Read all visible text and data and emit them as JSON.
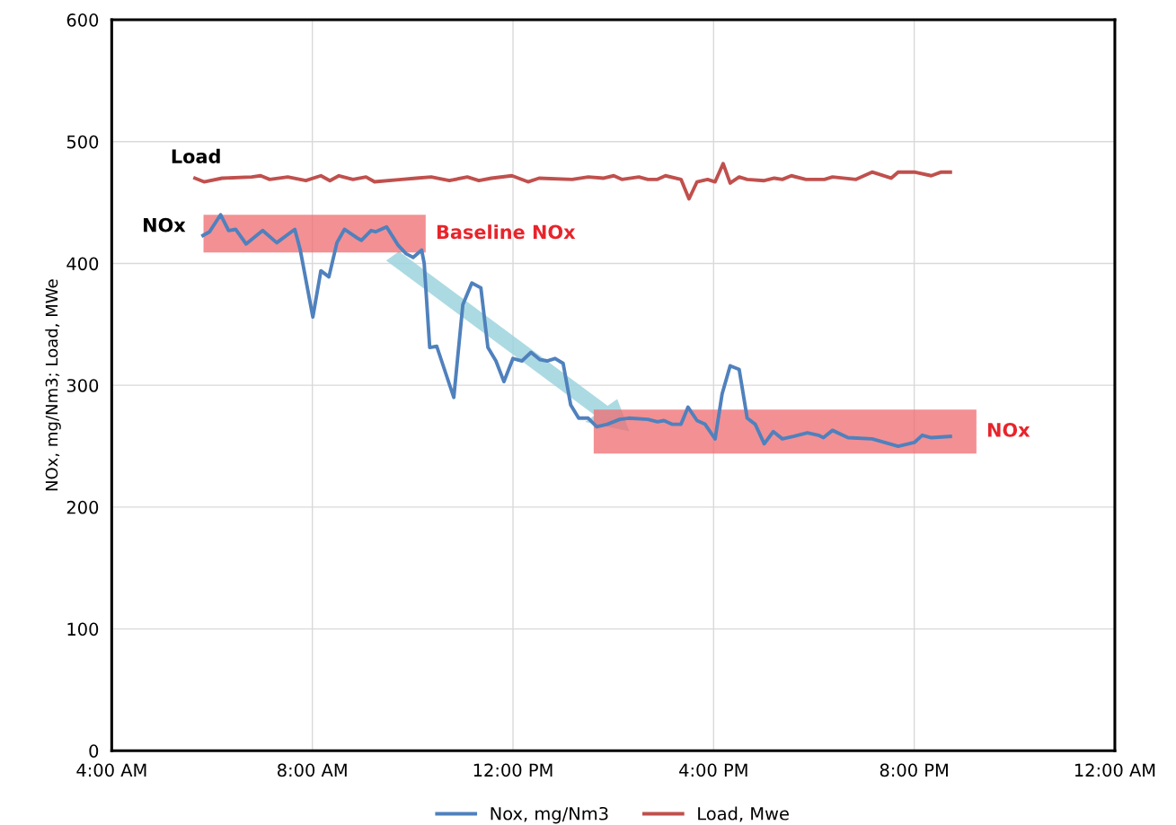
{
  "chart_data": {
    "type": "line",
    "ylabel": "NOx, mg/Nm3; Load, MWe",
    "xlim": [
      4,
      24
    ],
    "xticks": [
      {
        "value": 4,
        "label": "4:00 AM"
      },
      {
        "value": 8,
        "label": "8:00 AM"
      },
      {
        "value": 12,
        "label": "12:00 PM"
      },
      {
        "value": 16,
        "label": "4:00 PM"
      },
      {
        "value": 20,
        "label": "8:00 PM"
      },
      {
        "value": 24,
        "label": "12:00 AM"
      }
    ],
    "ylim": [
      0,
      600
    ],
    "yticks": [
      0,
      100,
      200,
      300,
      400,
      500,
      600
    ],
    "grid": true,
    "legend": "bottom",
    "marker": "none",
    "line_style": "solid",
    "series": [
      {
        "name": "Nox, mg/Nm3",
        "color": "#4f81bd",
        "x": [
          5.82,
          5.95,
          6.17,
          6.33,
          6.47,
          6.68,
          7.01,
          7.29,
          7.65,
          7.76,
          8.01,
          8.17,
          8.33,
          8.49,
          8.64,
          8.89,
          8.98,
          9.17,
          9.26,
          9.48,
          9.71,
          9.87,
          10.01,
          10.18,
          10.23,
          10.34,
          10.48,
          10.82,
          11.0,
          11.18,
          11.36,
          11.5,
          11.66,
          11.82,
          12.0,
          12.18,
          12.36,
          12.54,
          12.68,
          12.84,
          13.0,
          13.15,
          13.31,
          13.5,
          13.67,
          13.88,
          14.13,
          14.31,
          14.69,
          14.88,
          15.01,
          15.17,
          15.35,
          15.49,
          15.67,
          15.83,
          16.03,
          16.17,
          16.33,
          16.51,
          16.67,
          16.83,
          17.01,
          17.19,
          17.37,
          17.59,
          17.87,
          18.09,
          18.19,
          18.37,
          18.68,
          19.16,
          19.68,
          20.0,
          20.16,
          20.34,
          20.72
        ],
        "values": [
          423,
          426,
          440,
          427,
          428,
          416,
          427,
          417,
          428,
          411,
          356,
          394,
          389,
          417,
          428,
          421,
          419,
          427,
          426,
          430,
          415,
          408,
          405,
          411,
          400,
          331,
          332,
          290,
          366,
          384,
          380,
          331,
          320,
          303,
          322,
          320,
          327,
          321,
          320,
          322,
          318,
          284,
          273,
          273,
          266,
          268,
          272,
          273,
          272,
          270,
          271,
          268,
          268,
          282,
          271,
          268,
          256,
          293,
          316,
          313,
          273,
          268,
          252,
          262,
          256,
          258,
          261,
          259,
          257,
          263,
          257,
          256,
          250,
          253,
          259,
          257,
          258
        ]
      },
      {
        "name": "Load, Mwe",
        "color": "#c0504d",
        "x": [
          5.66,
          5.84,
          6.2,
          6.79,
          6.97,
          7.15,
          7.51,
          7.87,
          8.17,
          8.35,
          8.53,
          8.81,
          9.07,
          9.24,
          9.78,
          10.07,
          10.37,
          10.73,
          11.09,
          11.32,
          11.57,
          11.98,
          12.3,
          12.52,
          13.18,
          13.5,
          13.81,
          14.01,
          14.17,
          14.51,
          14.69,
          14.88,
          15.04,
          15.35,
          15.51,
          15.67,
          15.88,
          16.03,
          16.19,
          16.33,
          16.51,
          16.67,
          17.01,
          17.21,
          17.37,
          17.55,
          17.84,
          18.21,
          18.37,
          18.84,
          19.16,
          19.54,
          19.68,
          20.0,
          20.34,
          20.54,
          20.72
        ],
        "values": [
          470,
          467,
          470,
          471,
          472,
          469,
          471,
          468,
          472,
          468,
          472,
          469,
          471,
          467,
          469,
          470,
          471,
          468,
          471,
          468,
          470,
          472,
          467,
          470,
          469,
          471,
          470,
          472,
          469,
          471,
          469,
          469,
          472,
          469,
          453,
          467,
          469,
          467,
          482,
          466,
          471,
          469,
          468,
          470,
          469,
          472,
          469,
          469,
          471,
          469,
          475,
          470,
          475,
          475,
          472,
          475,
          475
        ]
      }
    ],
    "bands": [
      {
        "axis": "y",
        "from": 409,
        "to": 440,
        "label": "Baseline NOx",
        "color": "#ef6b6f"
      },
      {
        "axis": "y",
        "from": 244,
        "to": 280,
        "label": "NOx",
        "color": "#ef6b6f"
      }
    ],
    "annotations": [
      "Load",
      "NOx"
    ]
  }
}
